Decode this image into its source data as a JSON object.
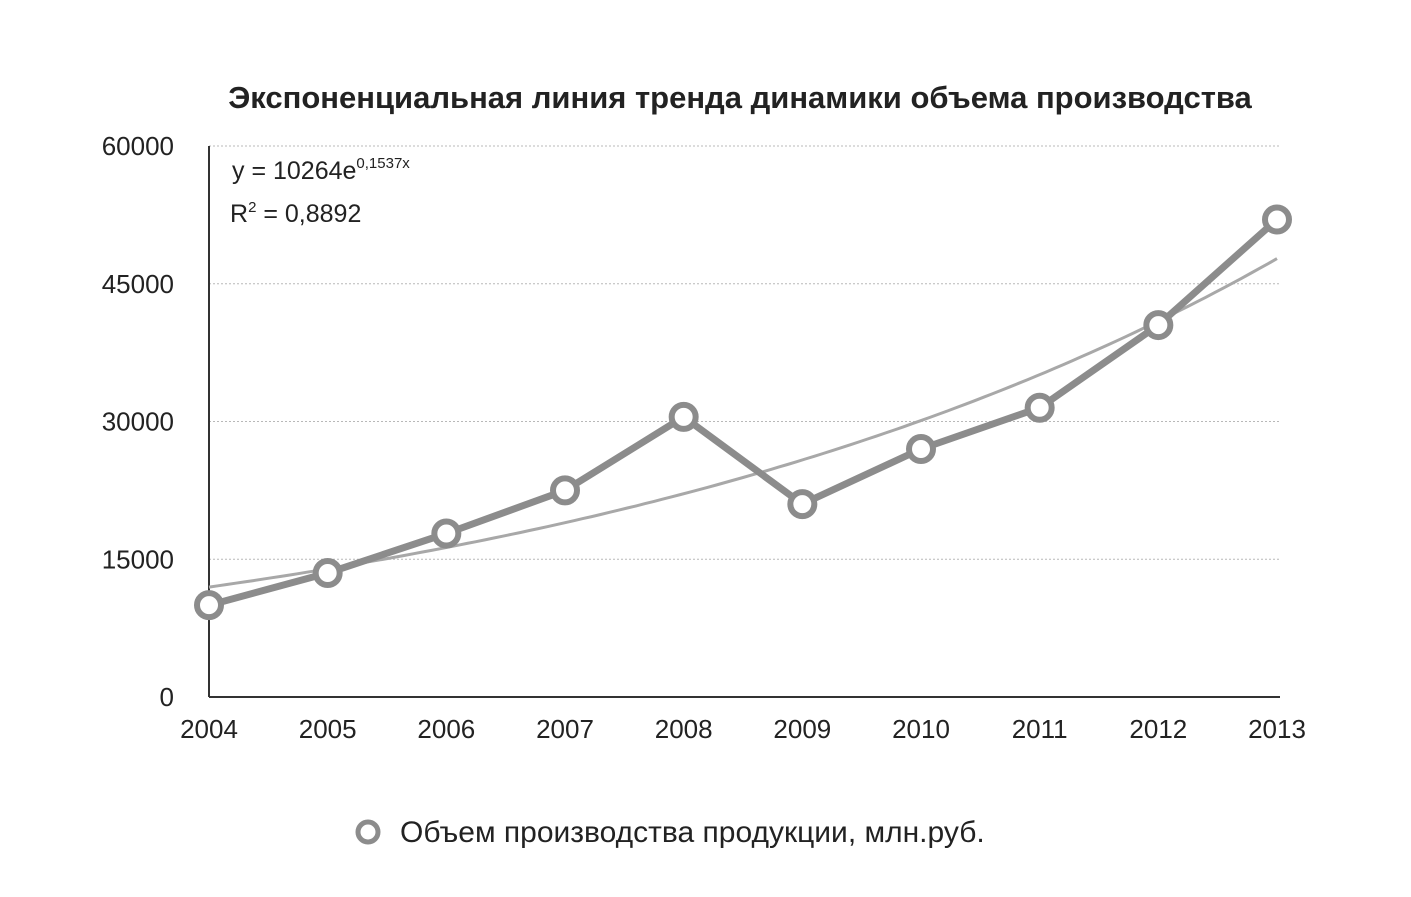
{
  "chart_data": {
    "type": "line",
    "title": "Экспоненциальная линия тренда динамики объема производства",
    "xlabel": "",
    "ylabel": "",
    "categories": [
      "2004",
      "2005",
      "2006",
      "2007",
      "2008",
      "2009",
      "2010",
      "2011",
      "2012",
      "2013"
    ],
    "ylim": [
      0,
      60000
    ],
    "yticks": [
      0,
      15000,
      30000,
      45000,
      60000
    ],
    "grid": true,
    "series": [
      {
        "name": "Объем производства продукции, млн.руб.",
        "values": [
          10000,
          13500,
          17800,
          22500,
          30500,
          21000,
          27000,
          31500,
          40500,
          52000
        ],
        "color": "#8c8c8c",
        "marker": "circle"
      }
    ],
    "trendline": {
      "type": "exponential",
      "a": 10264,
      "b": 0.1537,
      "color": "#a8a8a8"
    },
    "annotations": {
      "equation_prefix": "y = 10264e",
      "equation_exponent": "0,1537x",
      "r2_prefix": "R",
      "r2_sup": "2",
      "r2_suffix": " = 0,8892"
    },
    "legend": {
      "position": "bottom",
      "label": "Объем производства продукции, млн.руб."
    }
  }
}
